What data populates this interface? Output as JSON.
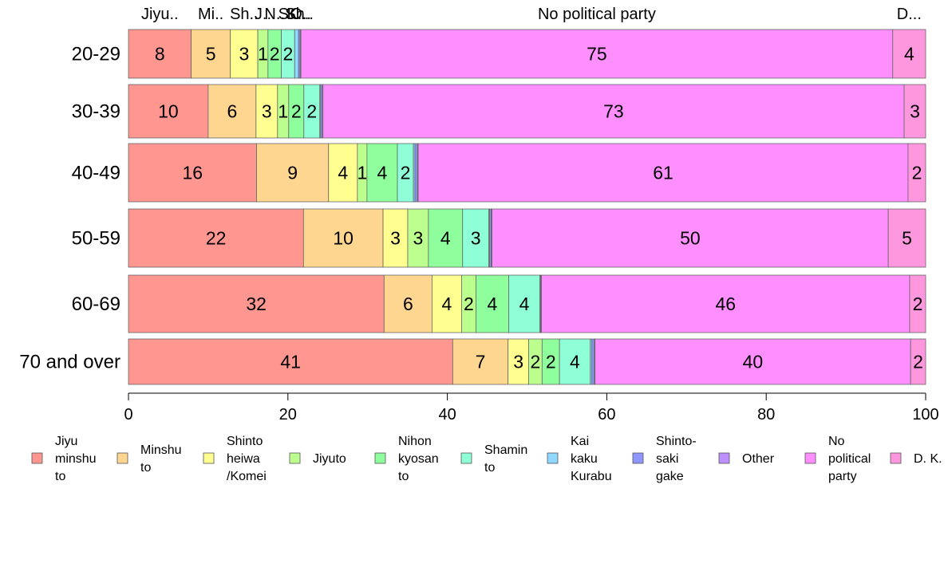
{
  "chart_data": {
    "type": "bar",
    "orientation": "horizontal",
    "stacked": true,
    "categories": [
      "20-29",
      "30-39",
      "40-49",
      "50-59",
      "60-69",
      "70 and over"
    ],
    "series": [
      {
        "name": "Jiyu minshu to",
        "legend_lines": [
          "Jiyu",
          "minshu",
          "to"
        ],
        "top_label": "Jiyu..",
        "color": "#FF9690",
        "values": [
          8,
          10,
          16,
          22,
          32,
          41
        ],
        "labels": [
          "8",
          "10",
          "16",
          "22",
          "32",
          "41"
        ]
      },
      {
        "name": "Minshu to",
        "legend_lines": [
          "Minshu",
          "to"
        ],
        "top_label": "Mi..",
        "color": "#FFD68F",
        "values": [
          5,
          6,
          9,
          10,
          6,
          7
        ],
        "labels": [
          "5",
          "6",
          "9",
          "10",
          "6",
          "7"
        ]
      },
      {
        "name": "Shinto heiwa /Komei",
        "legend_lines": [
          "Shinto",
          "heiwa",
          "/Komei"
        ],
        "top_label": "Sh..",
        "color": "#FFFF91",
        "values": [
          3.5,
          2.7,
          3.6,
          3.1,
          3.7,
          2.6
        ],
        "labels": [
          "3",
          "3",
          "4",
          "3",
          "4",
          "3"
        ]
      },
      {
        "name": "Jiyuto",
        "legend_lines": [
          "Jiyuto"
        ],
        "top_label": "J..",
        "color": "#BDFF8F",
        "values": [
          1.3,
          1.4,
          1.2,
          2.6,
          1.8,
          1.7
        ],
        "labels": [
          "1",
          "1",
          "1",
          "3",
          "2",
          "2"
        ]
      },
      {
        "name": "Nihon kyosan to",
        "legend_lines": [
          "Nihon",
          "kyosan",
          "to"
        ],
        "top_label": "N..",
        "color": "#8FFF9D",
        "values": [
          1.7,
          1.9,
          3.8,
          4.3,
          4.1,
          2.2
        ],
        "labels": [
          "2",
          "2",
          "4",
          "4",
          "4",
          "2"
        ]
      },
      {
        "name": "Shamin to",
        "legend_lines": [
          "Shamin",
          "to"
        ],
        "top_label": "S..",
        "color": "#8FFFD8",
        "values": [
          1.7,
          2.0,
          2.0,
          3.3,
          3.9,
          3.9
        ],
        "labels": [
          "2",
          "2",
          "2",
          "3",
          "4",
          "4"
        ]
      },
      {
        "name": "Kai kaku Kurabu",
        "legend_lines": [
          "Kai",
          "kaku",
          "Kurabu"
        ],
        "top_label": "K..",
        "color": "#8FD8FF",
        "values": [
          0.5,
          0.1,
          0.2,
          0.1,
          0.1,
          0.2
        ],
        "labels": [
          "",
          "",
          "",
          "",
          "",
          ""
        ]
      },
      {
        "name": "Shinto-saki gake",
        "legend_lines": [
          "Shinto-",
          "saki",
          "gake"
        ],
        "top_label": "Sh..",
        "color": "#8F96FF",
        "values": [
          0.2,
          0.2,
          0.3,
          0.2,
          0.05,
          0.3
        ],
        "labels": [
          "",
          "",
          "",
          "",
          "",
          ""
        ]
      },
      {
        "name": "Other",
        "legend_lines": [
          "Other"
        ],
        "top_label": "O..",
        "color": "#BD8FFF",
        "values": [
          0.1,
          0.1,
          0.1,
          0.1,
          0.05,
          0.1
        ],
        "labels": [
          "",
          "",
          "",
          "",
          "",
          ""
        ]
      },
      {
        "name": "No political party",
        "legend_lines": [
          "No",
          "political",
          "party"
        ],
        "top_label": "No political party",
        "color": "#FF8FFF",
        "values": [
          75.5,
          72.9,
          61.2,
          49.8,
          46.1,
          39.9
        ],
        "labels": [
          "75",
          "73",
          "61",
          "50",
          "46",
          "40"
        ]
      },
      {
        "name": "D. K.",
        "legend_lines": [
          "D. K."
        ],
        "top_label": "D...",
        "color": "#FF97DF",
        "values": [
          4.2,
          2.7,
          2.2,
          4.7,
          2.0,
          1.9
        ],
        "labels": [
          "4",
          "3",
          "2",
          "5",
          "2",
          "2"
        ]
      }
    ],
    "x_ticks": [
      "0",
      "20",
      "40",
      "60",
      "80",
      "100"
    ],
    "xlim": [
      0,
      100
    ],
    "title": "",
    "xlabel": "",
    "ylabel": "",
    "grid": false,
    "legend_position": "bottom"
  }
}
